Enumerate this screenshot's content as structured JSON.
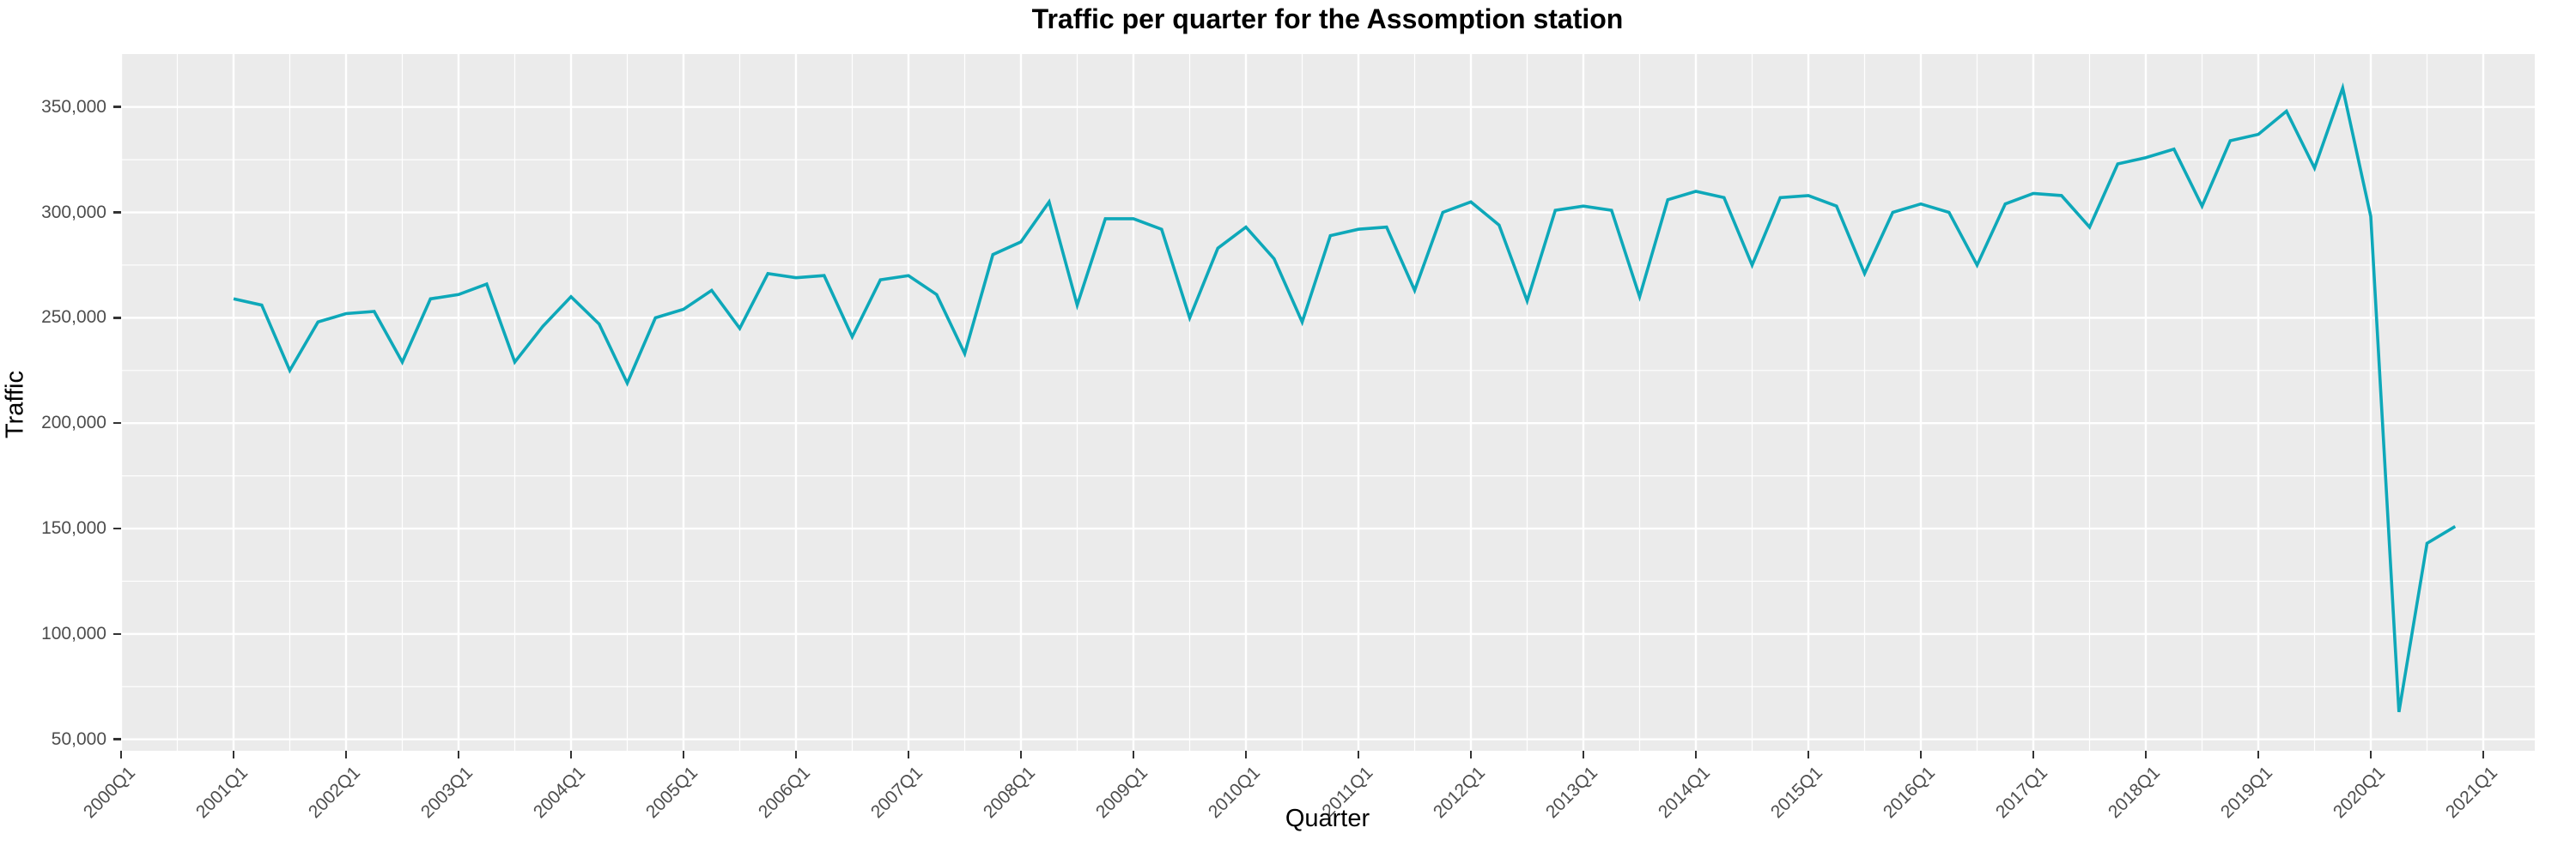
{
  "chart_data": {
    "type": "line",
    "title": "Traffic per quarter for the Assomption station",
    "xlabel": "Quarter",
    "ylabel": "Traffic",
    "legend": "none",
    "grid": "major+minor",
    "panel_bg": "#EBEBEB",
    "grid_color": "#FFFFFF",
    "line_color": "#0EA8B9",
    "tick_text_color": "#4D4D4D",
    "x_tick_labels": [
      "2000Q1",
      "2001Q1",
      "2002Q1",
      "2003Q1",
      "2004Q1",
      "2005Q1",
      "2006Q1",
      "2007Q1",
      "2008Q1",
      "2009Q1",
      "2010Q1",
      "2011Q1",
      "2012Q1",
      "2013Q1",
      "2014Q1",
      "2015Q1",
      "2016Q1",
      "2017Q1",
      "2018Q1",
      "2019Q1",
      "2020Q1",
      "2021Q1"
    ],
    "y_ticks": [
      50000,
      100000,
      150000,
      200000,
      250000,
      300000,
      350000
    ],
    "y_tick_labels": [
      "50,000",
      "100,000",
      "150,000",
      "200,000",
      "250,000",
      "300,000",
      "350,000"
    ],
    "ylim": [
      44000,
      375000
    ],
    "x": [
      "2001Q1",
      "2001Q2",
      "2001Q3",
      "2001Q4",
      "2002Q1",
      "2002Q2",
      "2002Q3",
      "2002Q4",
      "2003Q1",
      "2003Q2",
      "2003Q3",
      "2003Q4",
      "2004Q1",
      "2004Q2",
      "2004Q3",
      "2004Q4",
      "2005Q1",
      "2005Q2",
      "2005Q3",
      "2005Q4",
      "2006Q1",
      "2006Q2",
      "2006Q3",
      "2006Q4",
      "2007Q1",
      "2007Q2",
      "2007Q3",
      "2007Q4",
      "2008Q1",
      "2008Q2",
      "2008Q3",
      "2008Q4",
      "2009Q1",
      "2009Q2",
      "2009Q3",
      "2009Q4",
      "2010Q1",
      "2010Q2",
      "2010Q3",
      "2010Q4",
      "2011Q1",
      "2011Q2",
      "2011Q3",
      "2011Q4",
      "2012Q1",
      "2012Q2",
      "2012Q3",
      "2012Q4",
      "2013Q1",
      "2013Q2",
      "2013Q3",
      "2013Q4",
      "2014Q1",
      "2014Q2",
      "2014Q3",
      "2014Q4",
      "2015Q1",
      "2015Q2",
      "2015Q3",
      "2015Q4",
      "2016Q1",
      "2016Q2",
      "2016Q3",
      "2016Q4",
      "2017Q1",
      "2017Q2",
      "2017Q3",
      "2017Q4",
      "2018Q1",
      "2018Q2",
      "2018Q3",
      "2018Q4",
      "2019Q1",
      "2019Q2",
      "2019Q3",
      "2019Q4",
      "2020Q1",
      "2020Q2",
      "2020Q3",
      "2020Q4"
    ],
    "values": [
      259000,
      256000,
      225000,
      248000,
      252000,
      253000,
      229000,
      259000,
      261000,
      266000,
      229000,
      246000,
      260000,
      247000,
      219000,
      250000,
      254000,
      263000,
      245000,
      271000,
      269000,
      270000,
      241000,
      268000,
      270000,
      261000,
      233000,
      280000,
      286000,
      305000,
      256000,
      297000,
      297000,
      292000,
      250000,
      283000,
      293000,
      278000,
      248000,
      289000,
      292000,
      293000,
      263000,
      300000,
      305000,
      294000,
      258000,
      301000,
      303000,
      301000,
      260000,
      306000,
      310000,
      307000,
      275000,
      307000,
      308000,
      303000,
      271000,
      300000,
      304000,
      300000,
      275000,
      304000,
      309000,
      308000,
      293000,
      323000,
      326000,
      330000,
      303000,
      334000,
      337000,
      348000,
      321000,
      359000,
      298000,
      63000,
      143000,
      151000
    ]
  }
}
